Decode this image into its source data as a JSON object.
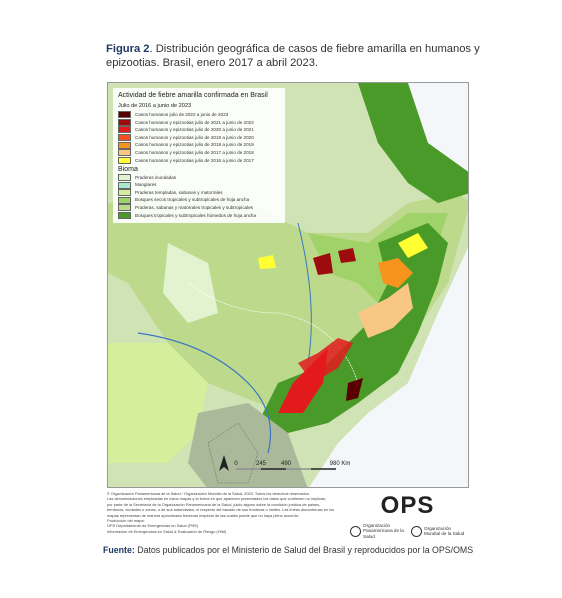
{
  "caption": {
    "label": "Figura 2",
    "text": ". Distribución geográfica de casos de fiebre amarilla en humanos y epizootias. Brasil, enero 2017 a abril 2023."
  },
  "legend": {
    "title": "Actividad de fiebre amarilla confirmada en Brasil",
    "subtitle": "Julio de 2016 a junio de 2023",
    "items": [
      {
        "label": "Casos humanos julio de 2022 a junio de 2023",
        "color": "#5a0000"
      },
      {
        "label": "Casos humanos y epizootias julio de 2021 a junio de 2022",
        "color": "#9e0b0f"
      },
      {
        "label": "Casos humanos y epizootias julio de 2020 a junio de 2021",
        "color": "#e31a1c"
      },
      {
        "label": "Casos humanos y epizootias julio de 2019 a junio de 2020",
        "color": "#f4511e"
      },
      {
        "label": "Casos humanos y epizootias julio de 2018 a junio de 2019",
        "color": "#f7941d"
      },
      {
        "label": "Casos humanos y epizootias julio de 2017 a junio de 2018",
        "color": "#f9c784"
      },
      {
        "label": "Casos humanos y epizootias julio de 2016 a junio de 2017",
        "color": "#ffff33"
      }
    ],
    "biome_title": "Bioma",
    "biomes": [
      {
        "label": "Praderas inundadas",
        "color": "#e3f3cf"
      },
      {
        "label": "Manglares",
        "color": "#a9e8cf"
      },
      {
        "label": "Praderas templadas, sabanas y matorrales",
        "color": "#d4ee9c"
      },
      {
        "label": "Bosques secos tropicales y subtropicales de hoja ancha",
        "color": "#9fd36a"
      },
      {
        "label": "Praderas, sabanas y matorrales tropicales y subtropicales",
        "color": "#bcd98c"
      },
      {
        "label": "Bosques tropicales y subtropicales húmedos de hoja ancha",
        "color": "#4a9a2a"
      }
    ]
  },
  "scale": {
    "labels": [
      "0",
      "245",
      "490",
      "980 Km"
    ]
  },
  "notes": [
    "© Organización Panamericana de la Salud / Organización Mundial de la Salud, 2023. Todos los derechos reservados.",
    "Las denominaciones empleadas en estos mapas y la forma en que aparecen presentados los datos que contienen no implican,",
    "por parte de la Secretaría de la Organización Panamericana de la Salud, juicio alguno sobre la condición jurídica de países,",
    "territorios, ciudades o zonas, o de sus autoridades, ni respecto del trazado de sus fronteras o límites. Las líneas discontinuas en los",
    "mapas representan de manera aproximada fronteras respecto de las cuales puede que no haya pleno acuerdo.",
    "Producción del mapa:",
    "OPS Departamento de Emergencias en Salud (PHE)",
    "Información de Emergencias en Salud & Evaluación de Riesgo (HIM)"
  ],
  "logo": {
    "acronym": "OPS",
    "paho": "Organización Panamericana de la Salud",
    "who": "Organización Mundial de la Salud"
  },
  "source": {
    "label": "Fuente:",
    "text": " Datos publicados por el Ministerio de Salud del Brasil y reproducidos por la OPS/OMS"
  }
}
